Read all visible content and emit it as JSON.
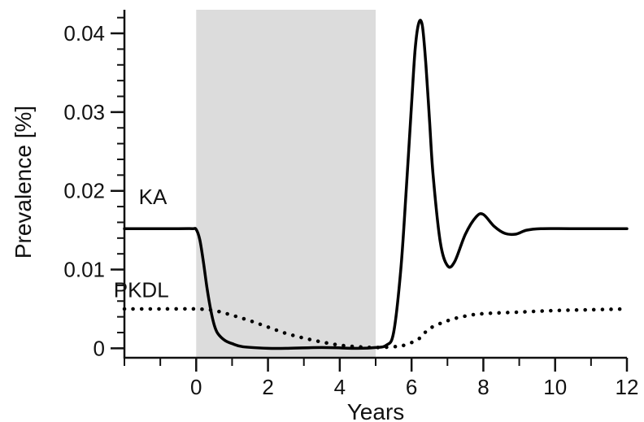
{
  "chart_data": {
    "type": "line",
    "xlabel": "Years",
    "ylabel": "Prevalence [%]",
    "xlim": [
      -2,
      12
    ],
    "ylim": [
      -0.0012,
      0.043
    ],
    "x_ticks": [
      0,
      2,
      4,
      6,
      8,
      10,
      12
    ],
    "x_tick_labels": [
      "0",
      "2",
      "4",
      "6",
      "8",
      "10",
      "12"
    ],
    "x_minor_ticks": [
      -2,
      -1,
      1,
      3,
      5,
      7,
      9,
      11
    ],
    "y_ticks": [
      0,
      0.01,
      0.02,
      0.03,
      0.04
    ],
    "y_tick_labels": [
      "0",
      "0.01",
      "0.02",
      "0.03",
      "0.04"
    ],
    "y_minor_step": 0.002,
    "shaded_region": {
      "x": [
        0,
        5
      ],
      "color": "#dcdcdc"
    },
    "grid": false,
    "series": [
      {
        "name": "KA",
        "style": "solid",
        "color": "#000000",
        "points": [
          [
            -2,
            0.0152
          ],
          [
            -0.5,
            0.0152
          ],
          [
            -0.1,
            0.0152
          ],
          [
            0,
            0.0151
          ],
          [
            0.1,
            0.0138
          ],
          [
            0.2,
            0.011
          ],
          [
            0.3,
            0.0077
          ],
          [
            0.4,
            0.005
          ],
          [
            0.5,
            0.003
          ],
          [
            0.6,
            0.0019
          ],
          [
            0.8,
            0.001
          ],
          [
            1.0,
            0.0006
          ],
          [
            1.3,
            0.0002
          ],
          [
            2.0,
            0.0
          ],
          [
            2.5,
            0.0
          ],
          [
            3.5,
            0.0001
          ],
          [
            4.5,
            0.0
          ],
          [
            5.0,
            0.0001
          ],
          [
            5.3,
            0.0004
          ],
          [
            5.5,
            0.002
          ],
          [
            5.7,
            0.01
          ],
          [
            5.85,
            0.02
          ],
          [
            6.0,
            0.031
          ],
          [
            6.1,
            0.038
          ],
          [
            6.2,
            0.0413
          ],
          [
            6.3,
            0.041
          ],
          [
            6.4,
            0.036
          ],
          [
            6.5,
            0.029
          ],
          [
            6.6,
            0.022
          ],
          [
            6.8,
            0.0135
          ],
          [
            7.0,
            0.0105
          ],
          [
            7.2,
            0.011
          ],
          [
            7.5,
            0.0145
          ],
          [
            7.8,
            0.0167
          ],
          [
            8.0,
            0.017
          ],
          [
            8.3,
            0.0155
          ],
          [
            8.6,
            0.0146
          ],
          [
            8.9,
            0.0145
          ],
          [
            9.2,
            0.015
          ],
          [
            9.6,
            0.0152
          ],
          [
            10.5,
            0.0152
          ],
          [
            12,
            0.0152
          ]
        ]
      },
      {
        "name": "PKDL",
        "style": "dotted",
        "color": "#000000",
        "points": [
          [
            -2,
            0.005
          ],
          [
            -1,
            0.005
          ],
          [
            0,
            0.005
          ],
          [
            0.5,
            0.0048
          ],
          [
            1,
            0.0042
          ],
          [
            1.5,
            0.0035
          ],
          [
            2,
            0.0027
          ],
          [
            2.5,
            0.0019
          ],
          [
            3,
            0.0013
          ],
          [
            3.5,
            0.0008
          ],
          [
            4,
            0.0004
          ],
          [
            4.5,
            0.0002
          ],
          [
            5,
            0.0001
          ],
          [
            5.5,
            0.0002
          ],
          [
            5.8,
            0.0004
          ],
          [
            6.2,
            0.0012
          ],
          [
            6.5,
            0.0025
          ],
          [
            7,
            0.0035
          ],
          [
            7.5,
            0.0041
          ],
          [
            8,
            0.0044
          ],
          [
            9,
            0.0046
          ],
          [
            10,
            0.0048
          ],
          [
            11,
            0.0049
          ],
          [
            12,
            0.005
          ]
        ]
      }
    ]
  }
}
